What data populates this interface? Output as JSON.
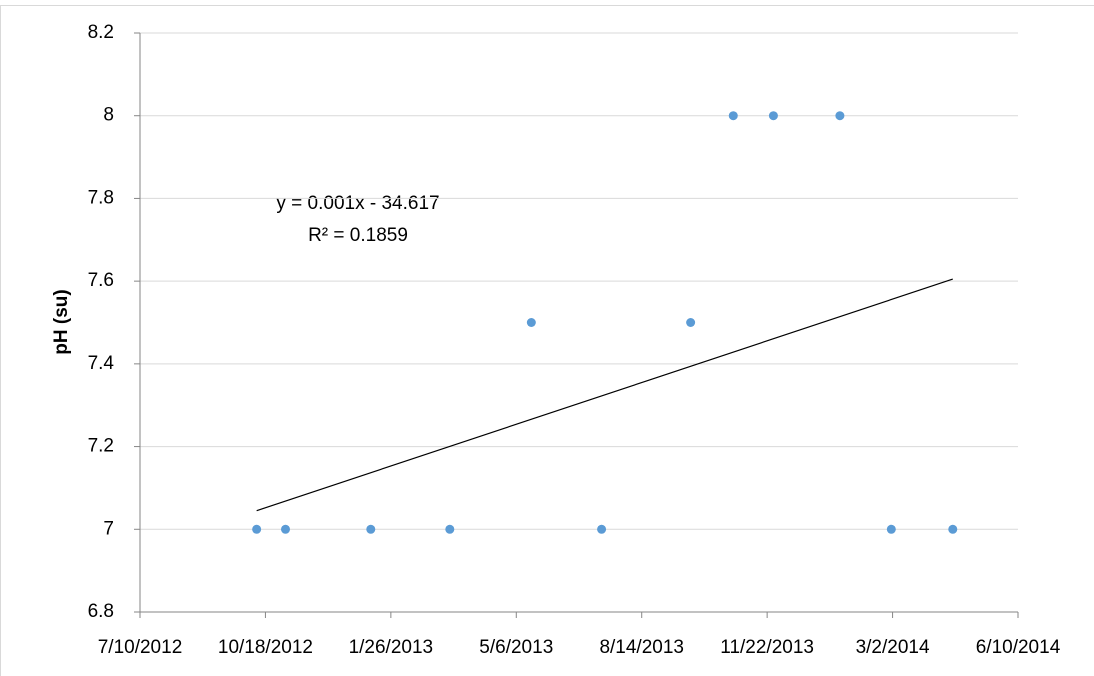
{
  "chart_data": {
    "type": "scatter",
    "y_label": "pH (su)",
    "series": [
      {
        "color": "#5b9bd5",
        "x": [
          41193,
          41216,
          41284,
          41347,
          41412,
          41468,
          41539,
          41573,
          41605,
          41658,
          41699,
          41748
        ],
        "values": [
          7,
          7,
          7,
          7,
          7.5,
          7,
          7.5,
          8,
          8,
          8,
          7,
          7
        ]
      }
    ],
    "trendline": {
      "color": "#000000",
      "x": [
        41193,
        41748
      ],
      "values": [
        7.045,
        7.605
      ]
    },
    "annotations": [
      "y = 0.001x - 34.617",
      "R² = 0.1859"
    ],
    "xlim": [
      41100,
      41800
    ],
    "xticks": [
      {
        "value": 41100,
        "label": "7/10/2012"
      },
      {
        "value": 41200,
        "label": "10/18/2012"
      },
      {
        "value": 41300,
        "label": "1/26/2013"
      },
      {
        "value": 41400,
        "label": "5/6/2013"
      },
      {
        "value": 41500,
        "label": "8/14/2013"
      },
      {
        "value": 41600,
        "label": "11/22/2013"
      },
      {
        "value": 41700,
        "label": "3/2/2014"
      },
      {
        "value": 41800,
        "label": "6/10/2014"
      }
    ],
    "ylim": [
      6.8,
      8.2
    ],
    "yticks": [
      6.8,
      7,
      7.2,
      7.4,
      7.6,
      7.8,
      8,
      8.2
    ],
    "grid": true
  }
}
